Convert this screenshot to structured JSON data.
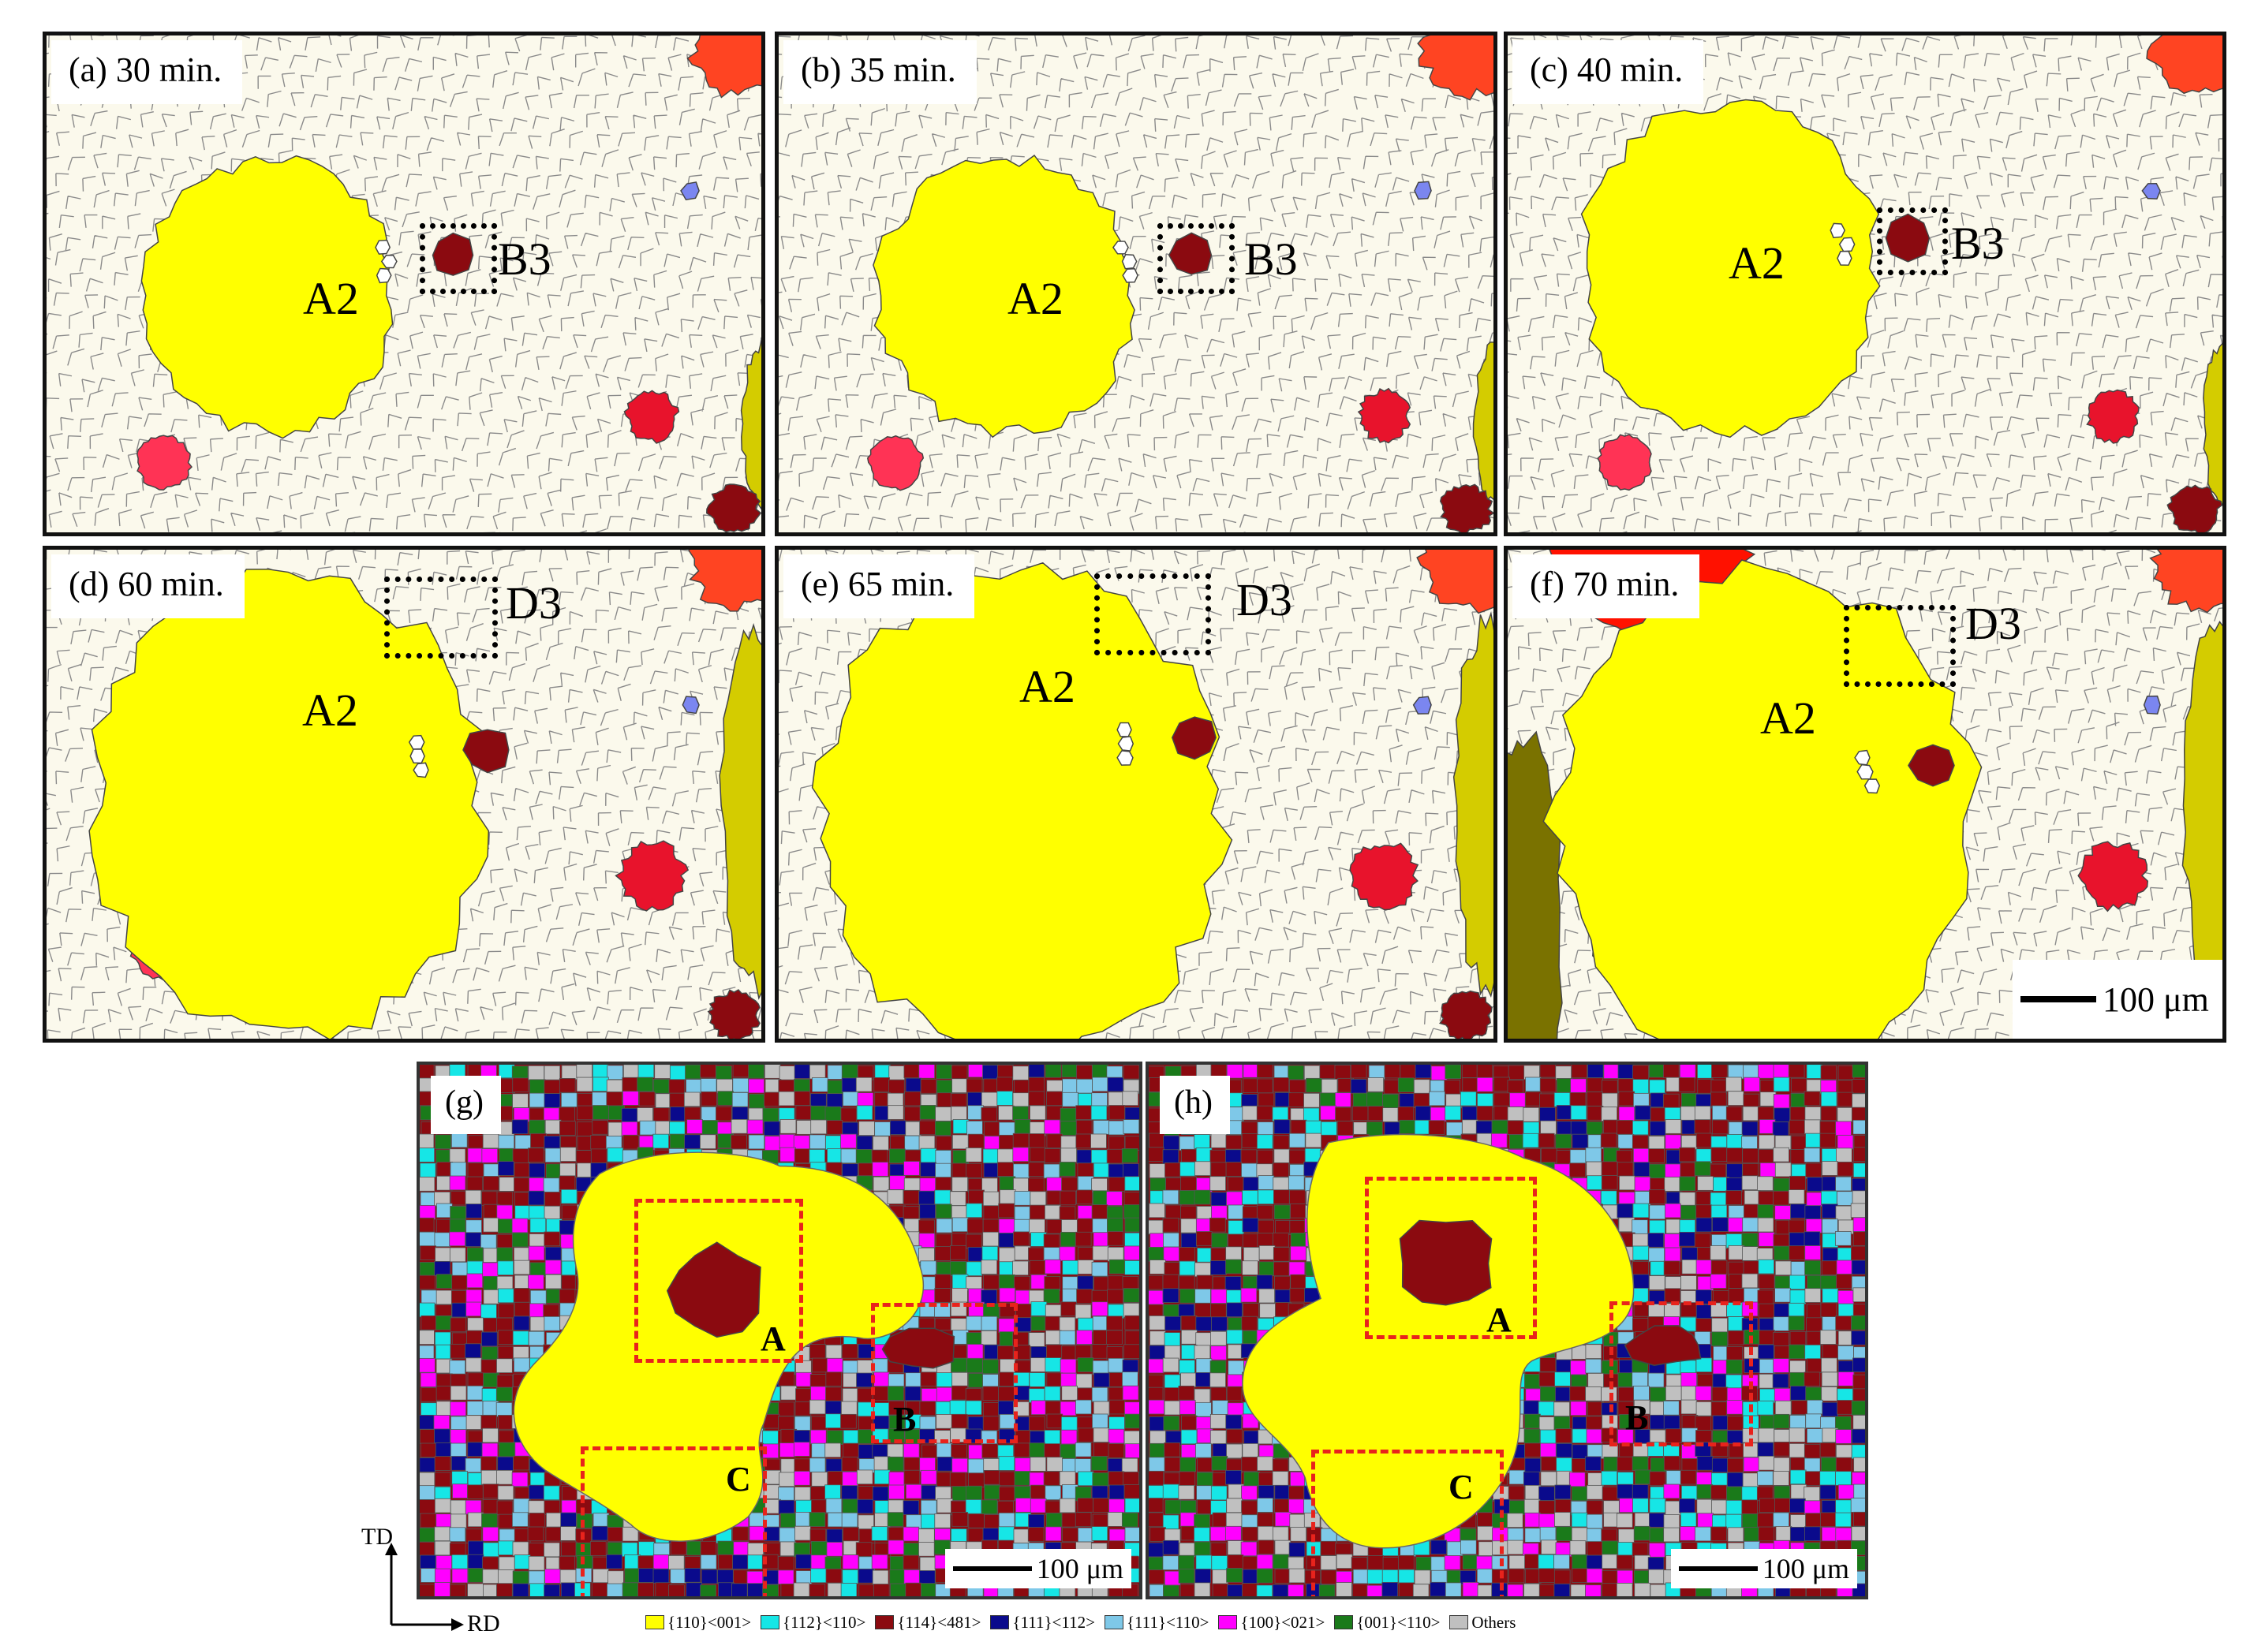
{
  "panels": [
    {
      "id": "a",
      "label": "(a) 30 min.",
      "grain_label": "A2",
      "box_label": "B3"
    },
    {
      "id": "b",
      "label": "(b) 35 min.",
      "grain_label": "A2",
      "box_label": "B3"
    },
    {
      "id": "c",
      "label": "(c) 40 min.",
      "grain_label": "A2",
      "box_label": "B3"
    },
    {
      "id": "d",
      "label": "(d) 60 min.",
      "grain_label": "A2",
      "box_label": "D3"
    },
    {
      "id": "e",
      "label": "(e) 65 min.",
      "grain_label": "A2",
      "box_label": "D3"
    },
    {
      "id": "f",
      "label": "(f) 70 min.",
      "grain_label": "A2",
      "box_label": "D3",
      "scale_label": "100 μm"
    }
  ],
  "ebsd": [
    {
      "id": "g",
      "label": "(g)",
      "boxes": [
        "A",
        "B",
        "C"
      ],
      "scale_label": "100 μm"
    },
    {
      "id": "h",
      "label": "(h)",
      "boxes": [
        "A",
        "B",
        "C"
      ],
      "scale_label": "100 μm"
    }
  ],
  "axes": {
    "td": "TD",
    "rd": "RD"
  },
  "legend": [
    {
      "label": "{110}<001>",
      "color": "#ffff00"
    },
    {
      "label": "{112}<110>",
      "color": "#16e6e6"
    },
    {
      "label": "{114}<481>",
      "color": "#8b0a10"
    },
    {
      "label": "{111}<112>",
      "color": "#0a0a8c"
    },
    {
      "label": "{111}<110>",
      "color": "#7ec8e8"
    },
    {
      "label": "{100}<021>",
      "color": "#ff00ff"
    },
    {
      "label": "{001}<110>",
      "color": "#1a7a1a"
    },
    {
      "label": "Others",
      "color": "#c0c0c0"
    }
  ],
  "colors": {
    "matrix": "#fbf9ec",
    "boundary": "#8a8a8a",
    "goss_grain": "#ffff00",
    "dark_red": "#8b0a10",
    "red": "#e8132c",
    "pink": "#ff3355",
    "orange_red": "#ff4422",
    "olive": "#d4cc00",
    "dark_olive": "#7a7200",
    "blue_grain": "#7b86f0"
  }
}
